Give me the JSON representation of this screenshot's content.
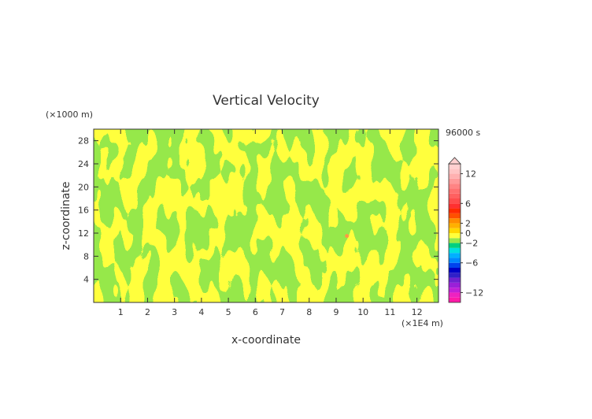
{
  "chart_data": {
    "type": "heatmap",
    "title": "Vertical Velocity",
    "xlabel": "x-coordinate",
    "ylabel": "z-coordinate",
    "x_unit": "(×1E4 m)",
    "y_unit": "(×1000 m)",
    "time_label": "96000 s",
    "xlim": [
      0,
      12.8
    ],
    "ylim": [
      0,
      30
    ],
    "x_ticks": [
      "1",
      "2",
      "3",
      "4",
      "5",
      "6",
      "7",
      "8",
      "9",
      "10",
      "11",
      "12"
    ],
    "y_ticks": [
      "4",
      "8",
      "12",
      "16",
      "20",
      "24",
      "28"
    ],
    "x_tick_values": [
      1,
      2,
      3,
      4,
      5,
      6,
      7,
      8,
      9,
      10,
      11,
      12
    ],
    "y_tick_values": [
      4,
      8,
      12,
      16,
      20,
      24,
      28
    ],
    "colorbar": {
      "min": -14,
      "max": 14,
      "step": 1,
      "tick_labels": [
        "12",
        "6",
        "2",
        "0",
        "−2",
        "−6",
        "−12"
      ],
      "tick_values": [
        12,
        6,
        2,
        0,
        -2,
        -6,
        -12
      ],
      "colors": [
        "#ff1aa8",
        "#ee22c0",
        "#c020d8",
        "#9a20d8",
        "#7020d0",
        "#3020c8",
        "#0000c8",
        "#0044ee",
        "#0088ff",
        "#00b0ff",
        "#00e0e0",
        "#00d080",
        "#96e84a",
        "#ffff3c",
        "#ffd700",
        "#ffb000",
        "#ff8c00",
        "#ff5000",
        "#ff2a00",
        "#ff3030",
        "#ff4c4c",
        "#ff6060",
        "#ff7070",
        "#ff8484",
        "#ff9a9a",
        "#ffb0b0",
        "#ffc4c4",
        "#ffd0d0"
      ]
    },
    "field_colors": {
      "negative_small": "#96e84a",
      "positive_small": "#ffff3c",
      "hot_spot": "#ff9944"
    },
    "extremes_shown": "mostly between -1 and 1; isolated small positive spot near x=9.4, z=11.5"
  }
}
